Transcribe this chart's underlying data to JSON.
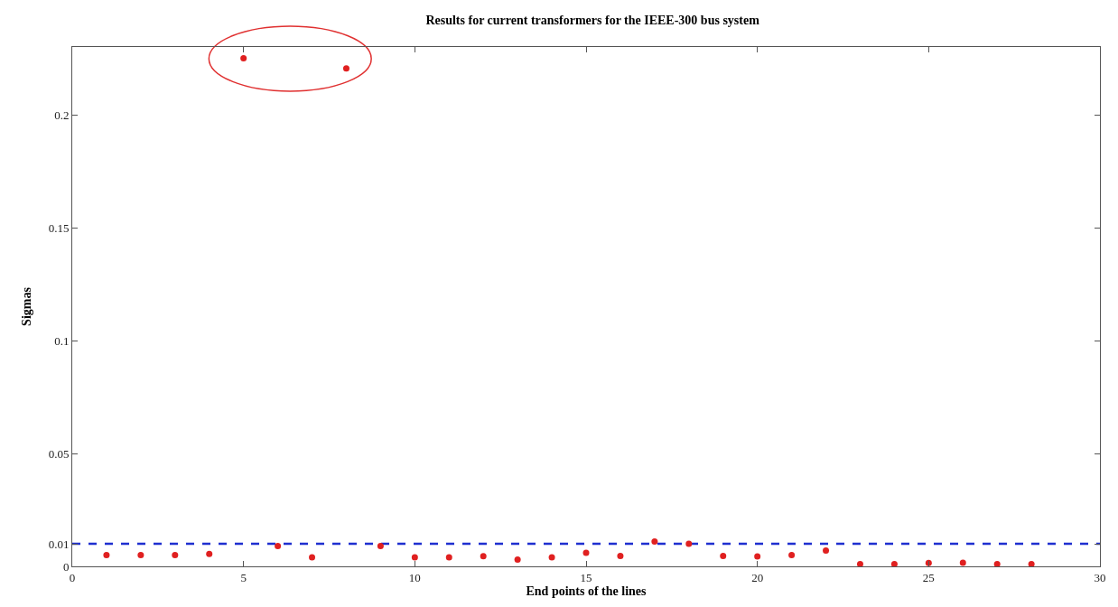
{
  "chart_data": {
    "type": "scatter",
    "title": "Results for current transformers for the IEEE-300 bus system",
    "xlabel": "End points of the lines",
    "ylabel": "Sigmas",
    "x": [
      1,
      2,
      3,
      4,
      5,
      6,
      7,
      8,
      9,
      10,
      11,
      12,
      13,
      14,
      15,
      16,
      17,
      18,
      19,
      20,
      21,
      22,
      23,
      24,
      25,
      26,
      27,
      28
    ],
    "series": [
      {
        "color": "#e02020",
        "values": [
          0.005,
          0.005,
          0.005,
          0.0055,
          0.225,
          0.009,
          0.004,
          0.2205,
          0.009,
          0.004,
          0.004,
          0.0045,
          0.003,
          0.004,
          0.006,
          0.0046,
          0.011,
          0.01,
          0.0046,
          0.0044,
          0.005,
          0.007,
          0.001,
          0.001,
          0.0015,
          0.0016,
          0.001,
          0.001
        ]
      }
    ],
    "xlim": [
      0,
      30
    ],
    "ylim": [
      0,
      0.23
    ],
    "xticks": [
      0,
      5,
      10,
      15,
      20,
      25,
      30
    ],
    "yticks": [
      0,
      0.01,
      0.05,
      0.1,
      0.15,
      0.2
    ],
    "ref_lines": [
      {
        "axis": "y",
        "value": 0.01,
        "color": "#1f2fd0",
        "line_style": "dashed"
      }
    ],
    "marker": "circle",
    "grid": false
  }
}
